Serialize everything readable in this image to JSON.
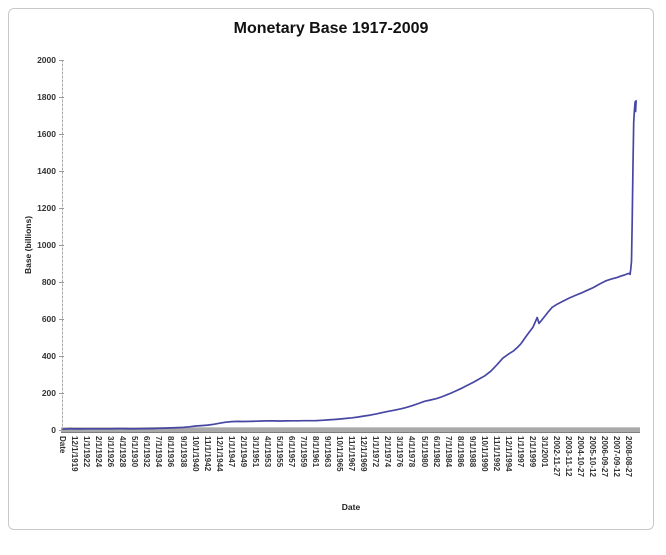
{
  "frame": {
    "border_color": "#c9c9c9",
    "background": "#ffffff"
  },
  "chart_data": {
    "type": "line",
    "title": "Monetary Base 1917-2009",
    "xlabel": "Date",
    "ylabel": "Base (billions)",
    "ylim": [
      0,
      2000
    ],
    "ytick_step": 200,
    "ytick_labels": [
      "0",
      "200",
      "400",
      "600",
      "800",
      "1000",
      "1200",
      "1400",
      "1600",
      "1800",
      "2000"
    ],
    "x_tick_labels": [
      "Date",
      "12/1/1919",
      "1/1/1922",
      "2/1/1924",
      "3/1/1926",
      "4/1/1928",
      "5/1/1930",
      "6/1/1932",
      "7/1/1934",
      "8/1/1936",
      "9/1/1938",
      "10/1/1940",
      "11/1/1942",
      "12/1/1944",
      "1/1/1947",
      "2/1/1949",
      "3/1/1951",
      "4/1/1953",
      "5/1/1955",
      "6/1/1957",
      "7/1/1959",
      "8/1/1961",
      "9/1/1963",
      "10/1/1965",
      "11/1/1967",
      "12/1/1969",
      "1/1/1972",
      "2/1/1974",
      "3/1/1976",
      "4/1/1978",
      "5/1/1980",
      "6/1/1982",
      "7/1/1984",
      "8/1/1986",
      "9/1/1988",
      "10/1/1990",
      "11/1/1992",
      "12/1/1994",
      "1/1/1997",
      "2/1/1999",
      "3/1/2001",
      "2002-11-27",
      "2003-11-12",
      "2004-10-27",
      "2005-10-12",
      "2006-09-27",
      "2007-09-12",
      "2008-08-27"
    ],
    "grid": false,
    "legend": "none",
    "line_color": "#4747a3",
    "axis_color": "#a9a9a9",
    "label_color": "#333333",
    "series": [
      {
        "name": "Monetary Base (billions)",
        "x_unit": "x-tick index (0 = left axis, 47 = 2008-08-27, fractional = between ticks)",
        "points": [
          [
            0,
            4.2
          ],
          [
            0.4,
            6.2
          ],
          [
            0.65,
            6.9
          ],
          [
            0.9,
            6.1
          ],
          [
            1,
            6.5
          ],
          [
            1.5,
            6.2
          ],
          [
            2,
            6.3
          ],
          [
            2.5,
            6.4
          ],
          [
            3,
            6.5
          ],
          [
            3.5,
            6.6
          ],
          [
            4,
            6.7
          ],
          [
            4.5,
            6.8
          ],
          [
            5,
            6.9
          ],
          [
            5.5,
            6.6
          ],
          [
            6,
            6.4
          ],
          [
            6.5,
            6.9
          ],
          [
            7,
            7.5
          ],
          [
            7.5,
            8.2
          ],
          [
            8,
            9.2
          ],
          [
            8.5,
            10.4
          ],
          [
            9,
            11.6
          ],
          [
            9.5,
            12.8
          ],
          [
            10,
            14
          ],
          [
            10.5,
            17.5
          ],
          [
            11,
            21.5
          ],
          [
            11.5,
            24
          ],
          [
            12,
            26.5
          ],
          [
            12.5,
            31
          ],
          [
            13,
            36.5
          ],
          [
            13.5,
            42
          ],
          [
            14,
            45.5
          ],
          [
            14.5,
            46.5
          ],
          [
            15,
            46
          ],
          [
            15.5,
            46.5
          ],
          [
            16,
            47.5
          ],
          [
            16.5,
            48.5
          ],
          [
            17,
            49.5
          ],
          [
            17.5,
            49
          ],
          [
            18,
            48.5
          ],
          [
            18.5,
            49
          ],
          [
            19,
            49.5
          ],
          [
            19.5,
            50
          ],
          [
            20,
            50.5
          ],
          [
            20.5,
            50.5
          ],
          [
            21,
            51
          ],
          [
            21.5,
            52.5
          ],
          [
            22,
            54.5
          ],
          [
            22.5,
            57
          ],
          [
            23,
            59.5
          ],
          [
            23.5,
            62.5
          ],
          [
            24,
            66
          ],
          [
            24.5,
            70.5
          ],
          [
            25,
            75.5
          ],
          [
            25.5,
            80.5
          ],
          [
            26,
            87
          ],
          [
            26.5,
            94
          ],
          [
            27,
            101
          ],
          [
            27.5,
            107
          ],
          [
            28,
            114
          ],
          [
            28.5,
            122
          ],
          [
            29,
            132
          ],
          [
            29.5,
            143
          ],
          [
            30,
            155
          ],
          [
            30.5,
            162
          ],
          [
            31,
            170
          ],
          [
            31.5,
            181
          ],
          [
            32,
            194
          ],
          [
            32.5,
            208
          ],
          [
            33,
            223
          ],
          [
            33.5,
            240
          ],
          [
            34,
            256
          ],
          [
            34.5,
            274
          ],
          [
            35,
            293
          ],
          [
            35.5,
            318
          ],
          [
            36,
            352
          ],
          [
            36.5,
            388
          ],
          [
            37,
            412
          ],
          [
            37.4,
            428
          ],
          [
            37.7,
            446
          ],
          [
            38,
            466
          ],
          [
            38.5,
            512
          ],
          [
            39,
            556
          ],
          [
            39.35,
            608
          ],
          [
            39.5,
            576
          ],
          [
            39.8,
            600
          ],
          [
            40,
            616
          ],
          [
            40.3,
            641
          ],
          [
            40.6,
            663
          ],
          [
            41,
            680
          ],
          [
            41.5,
            697
          ],
          [
            42,
            713
          ],
          [
            42.5,
            727
          ],
          [
            43,
            740
          ],
          [
            43.5,
            755
          ],
          [
            44,
            770
          ],
          [
            44.5,
            788
          ],
          [
            45,
            805
          ],
          [
            45.3,
            812
          ],
          [
            45.6,
            818
          ],
          [
            46,
            825
          ],
          [
            46.3,
            832
          ],
          [
            46.6,
            838
          ],
          [
            46.8,
            843
          ],
          [
            47,
            847
          ],
          [
            47.06,
            841
          ],
          [
            47.12,
            872
          ],
          [
            47.18,
            912
          ],
          [
            47.24,
            1129
          ],
          [
            47.3,
            1435
          ],
          [
            47.36,
            1662
          ],
          [
            47.42,
            1727
          ],
          [
            47.48,
            1774
          ],
          [
            47.52,
            1722
          ],
          [
            47.56,
            1780
          ]
        ]
      }
    ],
    "layout_hints": {
      "x_labels_rotated_degrees": 90,
      "y_axis_left": true,
      "thick_gray_x_axis_band": true
    }
  }
}
